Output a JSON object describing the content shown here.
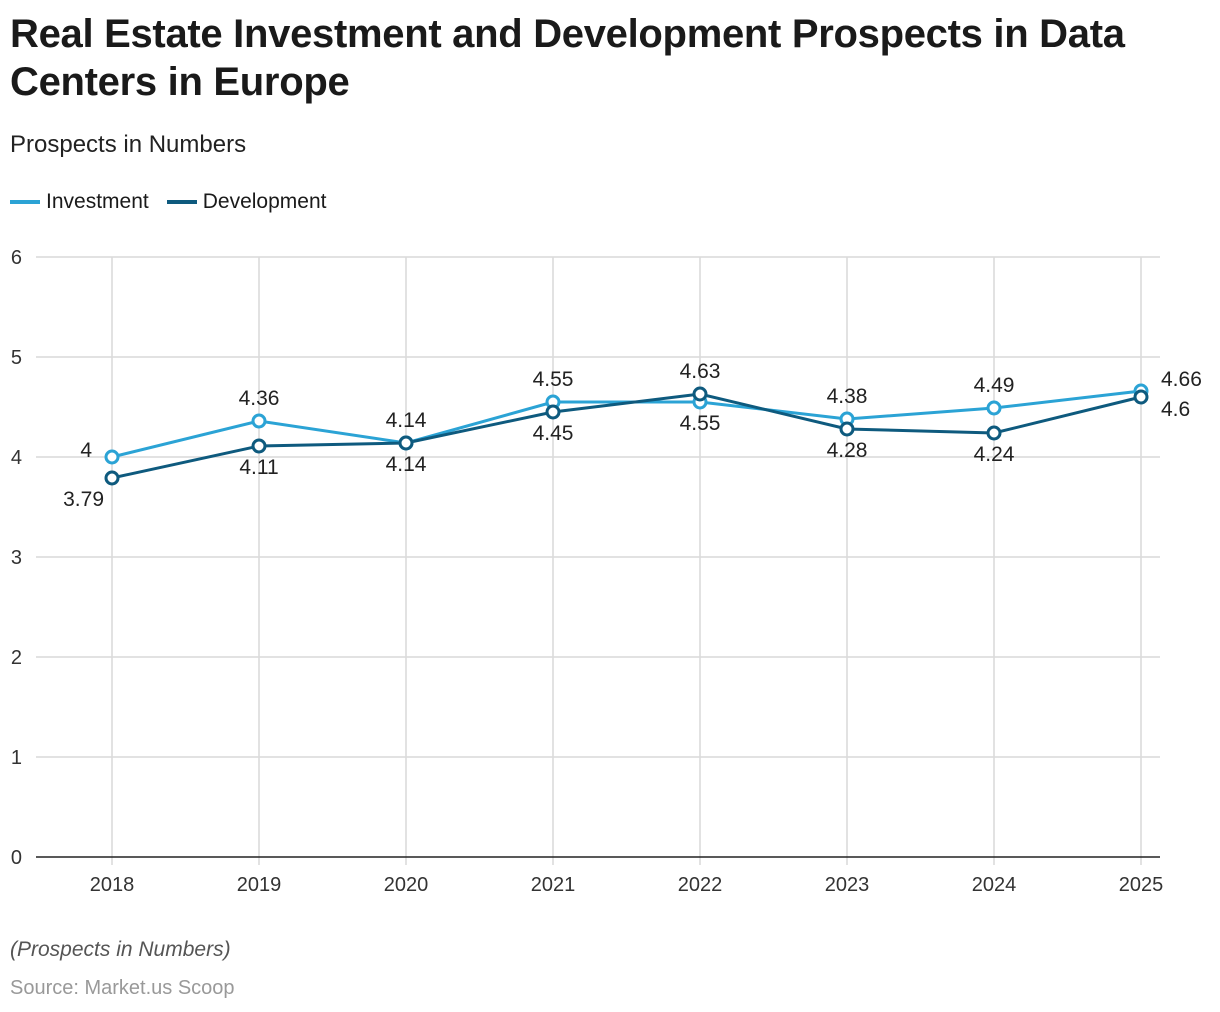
{
  "chart_data": {
    "type": "line",
    "title": "Real Estate Investment and Development Prospects in Data Centers in Europe",
    "subtitle": "Prospects in Numbers",
    "xlabel": "",
    "ylabel": "",
    "categories": [
      "2018",
      "2019",
      "2020",
      "2021",
      "2022",
      "2023",
      "2024",
      "2025"
    ],
    "ylim": [
      0,
      6
    ],
    "yticks": [
      "0",
      "1",
      "2",
      "3",
      "4",
      "5",
      "6"
    ],
    "grid": true,
    "legend_placement": "top-left",
    "series": [
      {
        "name": "Investment",
        "color": "#2ba3d5",
        "values": [
          4,
          4.36,
          4.14,
          4.55,
          4.55,
          4.38,
          4.49,
          4.66
        ]
      },
      {
        "name": "Development",
        "color": "#0e5a7e",
        "values": [
          3.79,
          4.11,
          4.14,
          4.45,
          4.63,
          4.28,
          4.24,
          4.6
        ]
      }
    ]
  },
  "note": "(Prospects in Numbers)",
  "source": "Source: Market.us Scoop"
}
